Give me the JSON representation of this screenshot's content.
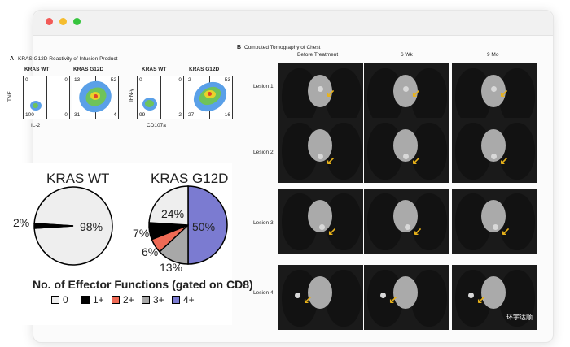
{
  "panel_a": {
    "label": "A",
    "title": "KRAS G12D Reactivity of Infusion Product",
    "flow_plots": [
      {
        "title": "KRAS WT",
        "q": [
          "0",
          "0",
          "100",
          "0"
        ]
      },
      {
        "title": "KRAS G12D",
        "q": [
          "13",
          "52",
          "31",
          "4"
        ]
      },
      {
        "title": "KRAS WT",
        "q": [
          "0",
          "0",
          "99",
          "2"
        ]
      },
      {
        "title": "KRAS G12D",
        "q": [
          "2",
          "53",
          "27",
          "16"
        ]
      }
    ],
    "axis_y_left": "TNF",
    "axis_x_left": "IL-2",
    "axis_y_right": "IFN-γ",
    "axis_x_right": "CD107a"
  },
  "pies": {
    "wt": {
      "title": "KRAS WT",
      "slices": [
        {
          "label": "98%",
          "value": 98,
          "color": "#eeeeee"
        },
        {
          "label": "2%",
          "value": 2,
          "color": "#000000"
        }
      ]
    },
    "g12d": {
      "title": "KRAS G12D",
      "slices": [
        {
          "label": "50%",
          "value": 50,
          "color": "#7b7bd1"
        },
        {
          "label": "13%",
          "value": 13,
          "color": "#a8a8a8"
        },
        {
          "label": "6%",
          "value": 6,
          "color": "#ef6a55"
        },
        {
          "label": "7%",
          "value": 7,
          "color": "#000000"
        },
        {
          "label": "24%",
          "value": 24,
          "color": "#eeeeee"
        }
      ]
    },
    "footer_title": "No. of Effector Functions (gated on CD8)",
    "legend": [
      {
        "label": "0",
        "color": "#eeeeee"
      },
      {
        "label": "1+",
        "color": "#000000"
      },
      {
        "label": "2+",
        "color": "#ef6a55"
      },
      {
        "label": "3+",
        "color": "#a8a8a8"
      },
      {
        "label": "4+",
        "color": "#7b7bd1"
      }
    ]
  },
  "panel_b": {
    "label": "B",
    "title": "Computed Tomography of Chest",
    "columns": [
      "Before Treatment",
      "6 Wk",
      "9 Mo"
    ],
    "rows": [
      "Lesion 1",
      "Lesion 2",
      "Lesion 3",
      "Lesion 4"
    ]
  },
  "watermark": "环宇达顺",
  "colors": {
    "arrow": "#e8b21a"
  }
}
